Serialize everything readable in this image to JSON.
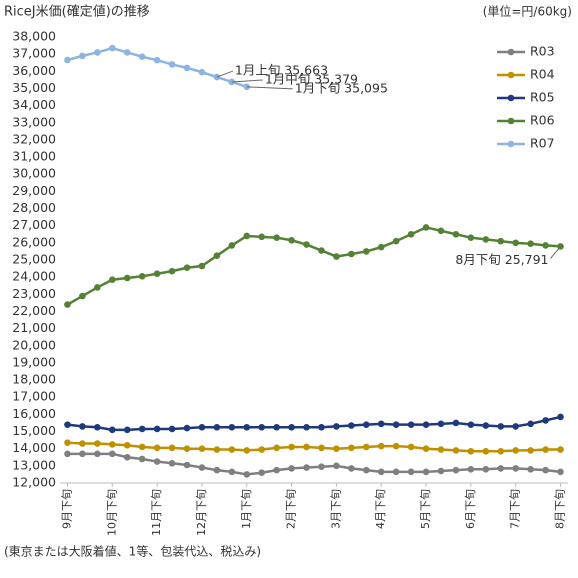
{
  "chart_data": {
    "type": "line",
    "title": "RiceJ米価(確定値)の推移",
    "subtitle": "(単位=円/60kg)",
    "footnote": "(東京または大阪着値、1等、包装代込、税込み)",
    "categories": [
      "9月下旬",
      null,
      null,
      "10月下旬",
      null,
      null,
      "11月下旬",
      null,
      null,
      "12月下旬",
      null,
      null,
      "1月下旬",
      null,
      null,
      "2月下旬",
      null,
      null,
      "3月下旬",
      null,
      null,
      "4月下旬",
      null,
      null,
      "5月下旬",
      null,
      null,
      "6月下旬",
      null,
      null,
      "7月下旬",
      null,
      null,
      "8月下旬"
    ],
    "ylim": [
      12000,
      38000
    ],
    "yticks": [
      {
        "value": 12000,
        "label": "12,000"
      },
      {
        "value": 13000,
        "label": "13,000"
      },
      {
        "value": 14000,
        "label": "14,000"
      },
      {
        "value": 15000,
        "label": "15,000"
      },
      {
        "value": 16000,
        "label": "16,000"
      },
      {
        "value": 17000,
        "label": "17,000"
      },
      {
        "value": 18000,
        "label": "18,000"
      },
      {
        "value": 19000,
        "label": "19,000"
      },
      {
        "value": 20000,
        "label": "20,000"
      },
      {
        "value": 21000,
        "label": "21,000"
      },
      {
        "value": 22000,
        "label": "22,000"
      },
      {
        "value": 23000,
        "label": "23,000"
      },
      {
        "value": 24000,
        "label": "24,000"
      },
      {
        "value": 25000,
        "label": "25,000"
      },
      {
        "value": 26000,
        "label": "26,000"
      },
      {
        "value": 27000,
        "label": "27,000"
      },
      {
        "value": 28000,
        "label": "28,000"
      },
      {
        "value": 29000,
        "label": "29,000"
      },
      {
        "value": 30000,
        "label": "30,000"
      },
      {
        "value": 31000,
        "label": "31,000"
      },
      {
        "value": 32000,
        "label": "32,000"
      },
      {
        "value": 33000,
        "label": "33,000"
      },
      {
        "value": 34000,
        "label": "34,000"
      },
      {
        "value": 35000,
        "label": "35,000"
      },
      {
        "value": 36000,
        "label": "36,000"
      },
      {
        "value": 37000,
        "label": "37,000"
      },
      {
        "value": 38000,
        "label": "38,000"
      }
    ],
    "grid": false,
    "legend": "upper right",
    "series": [
      {
        "name": "R03",
        "color": "#7f7f7f",
        "values": [
          13700,
          13700,
          13700,
          13700,
          13500,
          13400,
          13250,
          13150,
          13050,
          12900,
          12750,
          12650,
          12500,
          12600,
          12750,
          12850,
          12900,
          12950,
          13000,
          12850,
          12750,
          12650,
          12650,
          12650,
          12650,
          12700,
          12750,
          12800,
          12800,
          12850,
          12850,
          12800,
          12750,
          12650
        ]
      },
      {
        "name": "R04",
        "color": "#bf9000",
        "values": [
          14350,
          14300,
          14300,
          14250,
          14200,
          14100,
          14050,
          14050,
          14000,
          14000,
          13950,
          13950,
          13900,
          13950,
          14050,
          14100,
          14100,
          14050,
          14000,
          14050,
          14100,
          14150,
          14150,
          14100,
          14000,
          13950,
          13900,
          13850,
          13850,
          13850,
          13900,
          13900,
          13950,
          13950
        ]
      },
      {
        "name": "R05",
        "color": "#1f3a7a",
        "values": [
          15400,
          15300,
          15250,
          15100,
          15100,
          15150,
          15150,
          15150,
          15200,
          15250,
          15250,
          15250,
          15250,
          15250,
          15250,
          15250,
          15250,
          15250,
          15300,
          15350,
          15400,
          15450,
          15400,
          15400,
          15400,
          15450,
          15500,
          15400,
          15350,
          15300,
          15300,
          15450,
          15650,
          15850
        ]
      },
      {
        "name": "R06",
        "color": "#548235",
        "values": [
          22400,
          22900,
          23400,
          23850,
          23950,
          24050,
          24200,
          24350,
          24550,
          24650,
          25250,
          25850,
          26400,
          26350,
          26300,
          26150,
          25900,
          25550,
          25200,
          25350,
          25500,
          25750,
          26100,
          26500,
          26900,
          26700,
          26500,
          26300,
          26200,
          26100,
          26000,
          25950,
          25850,
          25791
        ],
        "value_labels": [
          null,
          null,
          null,
          null,
          null,
          null,
          null,
          null,
          null,
          null,
          null,
          null,
          null,
          null,
          null,
          null,
          null,
          null,
          null,
          null,
          null,
          null,
          null,
          null,
          null,
          null,
          null,
          null,
          null,
          null,
          null,
          null,
          null,
          "8月下旬 25,791"
        ]
      },
      {
        "name": "R07",
        "color": "#8db4e2",
        "values": [
          36660,
          36900,
          37100,
          37350,
          37100,
          36850,
          36650,
          36400,
          36200,
          35950,
          35663,
          35379,
          35095,
          null,
          null,
          null,
          null,
          null,
          null,
          null,
          null,
          null,
          null,
          null,
          null,
          null,
          null,
          null,
          null,
          null,
          null,
          null,
          null,
          null
        ],
        "value_labels": [
          null,
          null,
          null,
          null,
          null,
          null,
          null,
          null,
          null,
          null,
          "1月上旬 35,663",
          "1月中旬 35,379",
          "1月下旬 35,095",
          null,
          null,
          null,
          null,
          null,
          null,
          null,
          null,
          null,
          null,
          null,
          null,
          null,
          null,
          null,
          null,
          null,
          null,
          null,
          null,
          null
        ]
      }
    ]
  }
}
